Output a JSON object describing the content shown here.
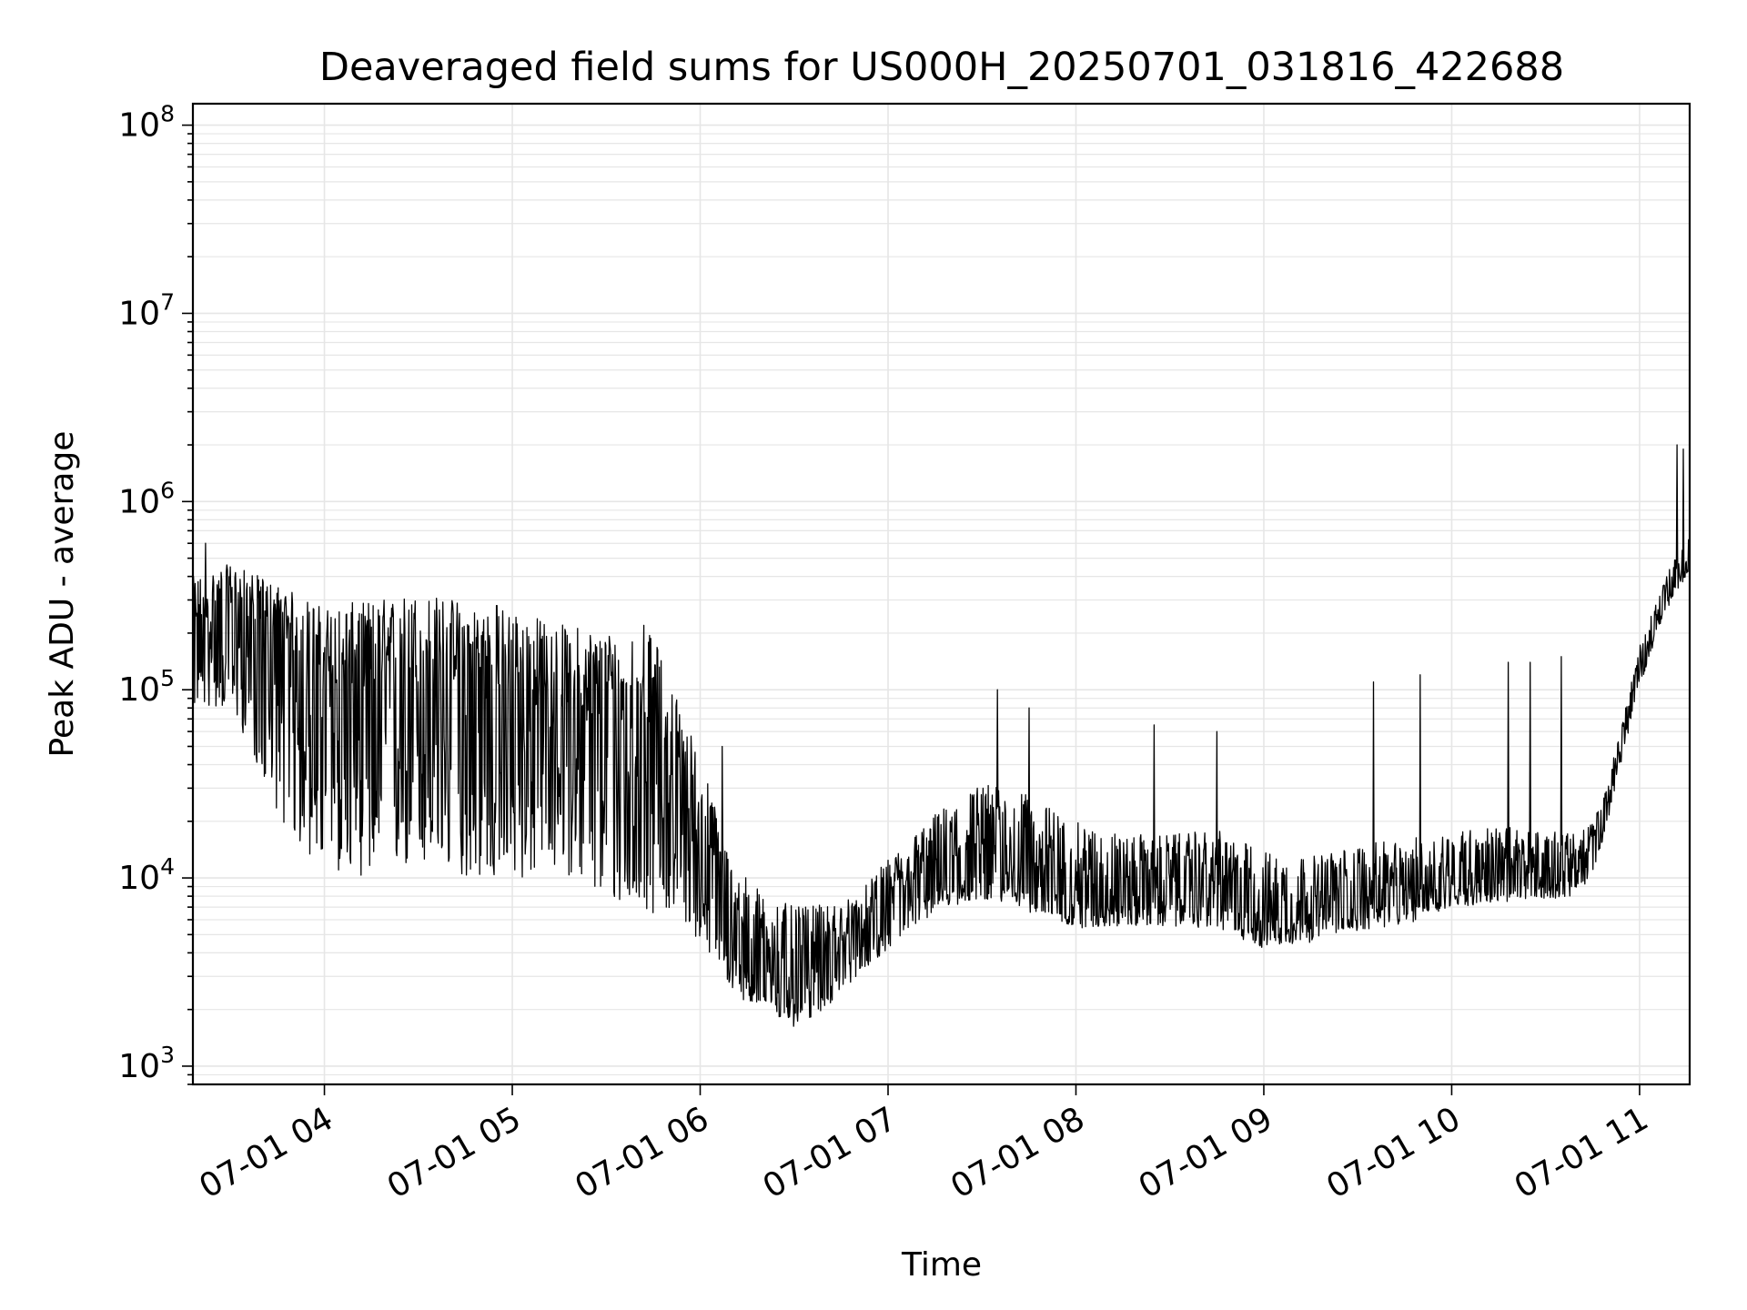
{
  "chart_data": {
    "type": "line",
    "title": "Deaveraged field sums for US000H_20250701_031816_422688",
    "xlabel": "Time",
    "ylabel": "Peak ADU - average",
    "x_ticks": [
      "07-01 04",
      "07-01 05",
      "07-01 06",
      "07-01 07",
      "07-01 08",
      "07-01 09",
      "07-01 10",
      "07-01 11"
    ],
    "x_range": [
      "2025-07-01 03:18:16",
      "2025-07-01 11:16:00"
    ],
    "y_scale": "log",
    "ylim": [
      800,
      130000000
    ],
    "y_ticks": [
      {
        "base": "10",
        "exp": "3",
        "value": 1000
      },
      {
        "base": "10",
        "exp": "4",
        "value": 10000
      },
      {
        "base": "10",
        "exp": "5",
        "value": 100000
      },
      {
        "base": "10",
        "exp": "6",
        "value": 1000000
      },
      {
        "base": "10",
        "exp": "7",
        "value": 10000000
      },
      {
        "base": "10",
        "exp": "8",
        "value": 100000000
      }
    ],
    "grid": true,
    "line_color": "#000000",
    "grid_color": "#e6e6e6",
    "series": [
      {
        "x": [
          "03:18",
          "03:30",
          "03:40",
          "03:50",
          "04:00",
          "04:15",
          "04:30",
          "04:45",
          "05:00",
          "05:15",
          "05:30",
          "05:45",
          "06:00",
          "06:10",
          "06:20",
          "06:30",
          "06:40",
          "06:50",
          "07:00",
          "07:15",
          "07:30",
          "07:45",
          "08:00",
          "08:15",
          "08:30",
          "08:45",
          "09:00",
          "09:15",
          "09:30",
          "09:45",
          "10:00",
          "10:15",
          "10:30",
          "10:40",
          "10:45",
          "10:50",
          "10:55",
          "11:00",
          "11:05",
          "11:10",
          "11:16"
        ],
        "values": [
          200000,
          260000,
          220000,
          150000,
          110000,
          100000,
          110000,
          100000,
          90000,
          75000,
          70000,
          65000,
          15000,
          5000,
          3800,
          3500,
          4000,
          5000,
          7000,
          11000,
          13000,
          11000,
          9000,
          8500,
          8500,
          9000,
          7000,
          6500,
          7500,
          8000,
          10000,
          10500,
          11000,
          11500,
          14000,
          25000,
          60000,
          130000,
          230000,
          350000,
          500000
        ],
        "spread_low": [
          0.4,
          0.3,
          0.15,
          0.1,
          0.1,
          0.1,
          0.1,
          0.1,
          0.1,
          0.15,
          0.1,
          0.1,
          0.3,
          0.5,
          0.5,
          0.45,
          0.5,
          0.6,
          0.6,
          0.6,
          0.6,
          0.6,
          0.6,
          0.65,
          0.65,
          0.6,
          0.6,
          0.7,
          0.7,
          0.7,
          0.7,
          0.7,
          0.7,
          0.7,
          0.75,
          0.8,
          0.8,
          0.8,
          0.8,
          0.85,
          0.85
        ],
        "spread_high": [
          2.0,
          1.8,
          1.8,
          2.2,
          2.5,
          3.0,
          3.0,
          3.0,
          3.0,
          3.0,
          3.0,
          3.0,
          3.0,
          2.5,
          2.2,
          2.0,
          1.8,
          1.6,
          1.8,
          2.0,
          2.5,
          2.5,
          2.2,
          2.0,
          2.0,
          2.0,
          2.0,
          2.0,
          2.0,
          2.0,
          1.8,
          1.8,
          1.6,
          1.5,
          1.4,
          1.3,
          1.3,
          1.3,
          1.3,
          1.3,
          1.3
        ],
        "spikes": [
          {
            "x": "03:22",
            "value": 600000
          },
          {
            "x": "04:55",
            "value": 280000
          },
          {
            "x": "05:42",
            "value": 220000
          },
          {
            "x": "06:07",
            "value": 50000
          },
          {
            "x": "07:35",
            "value": 100000
          },
          {
            "x": "07:45",
            "value": 80000
          },
          {
            "x": "08:25",
            "value": 65000
          },
          {
            "x": "08:45",
            "value": 60000
          },
          {
            "x": "09:35",
            "value": 110000
          },
          {
            "x": "09:50",
            "value": 120000
          },
          {
            "x": "10:18",
            "value": 140000
          },
          {
            "x": "10:25",
            "value": 140000
          },
          {
            "x": "10:35",
            "value": 150000
          },
          {
            "x": "11:12",
            "value": 2000000
          },
          {
            "x": "11:14",
            "value": 1900000
          }
        ]
      }
    ]
  }
}
